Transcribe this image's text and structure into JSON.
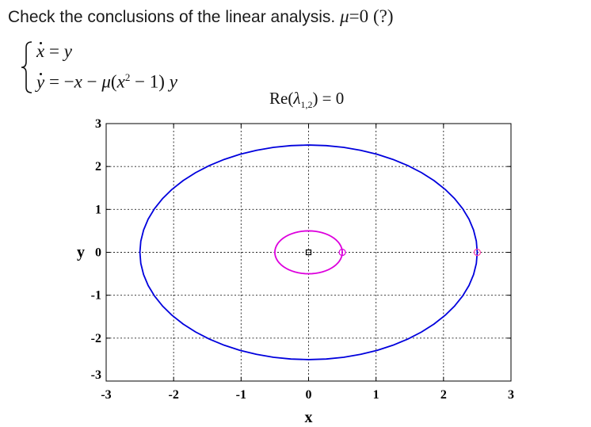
{
  "heading": {
    "text": "Check the conclusions of the linear analysis.",
    "mu_symbol": "μ",
    "mu_value": "=0",
    "question": "(?)"
  },
  "equations": {
    "line1_lhs": "x",
    "line1_eq": " = ",
    "line1_rhs": "y",
    "line2_lhs": "y",
    "line2_eq": " = −",
    "line2_rhs_a": "x",
    "line2_rhs_b": " − ",
    "line2_rhs_c": "μ",
    "line2_rhs_d": "(",
    "line2_rhs_e": "x",
    "line2_rhs_f": "2",
    "line2_rhs_g": " − 1)",
    "line2_rhs_h": " y"
  },
  "eigen_label": {
    "prefix": "Re(",
    "lambda": "λ",
    "subscript": "1,2",
    "suffix": ") = 0"
  },
  "chart_data": {
    "type": "line",
    "xlabel": "x",
    "ylabel": "y",
    "xlim": [
      -3,
      3
    ],
    "ylim": [
      -3,
      3
    ],
    "xticks": [
      -3,
      -2,
      -1,
      0,
      1,
      2,
      3
    ],
    "yticks": [
      -3,
      -2,
      -1,
      0,
      1,
      2,
      3
    ],
    "xtick_labels": [
      "-3",
      "-2",
      "-1",
      "0",
      "1",
      "2",
      "3"
    ],
    "ytick_labels": [
      "-3",
      "-2",
      "-1",
      "0",
      "1",
      "2",
      "3"
    ],
    "grid": true,
    "series": [
      {
        "color": "#0000dd",
        "shape": "circle",
        "center": [
          0,
          0
        ],
        "radius": 2.5,
        "start_point": [
          2.5,
          0
        ],
        "start_marker_color": "#ff44aa"
      },
      {
        "color": "#dd00dd",
        "shape": "circle",
        "center": [
          0,
          0
        ],
        "radius": 0.5,
        "start_point": [
          0.5,
          0
        ],
        "start_marker_color": "#dd00dd"
      }
    ],
    "equilibrium": {
      "x": 0,
      "y": 0,
      "marker": "square"
    }
  }
}
